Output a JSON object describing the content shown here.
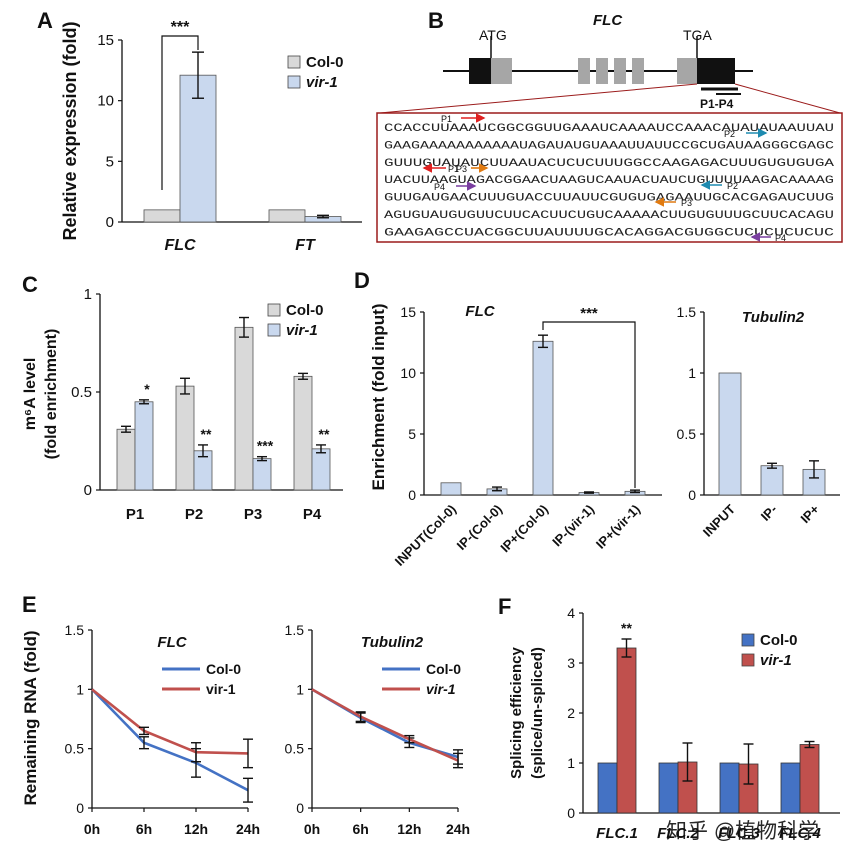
{
  "colors": {
    "col0": "#d9d9d9",
    "vir1": "#c9d8ee",
    "col0_line": "#4472c4",
    "vir1_line": "#c0504d",
    "col0_F": "#4472c4",
    "vir1_F": "#c0504d",
    "box_border": "#9b1b1b",
    "red": "#e02020",
    "teal": "#1e8bb0",
    "orange": "#e07a10",
    "purple": "#7a3ea0"
  },
  "chart_data": [
    {
      "panel": "A",
      "type": "bar",
      "ylabel": "Relative expression (fold)",
      "ylim": [
        0,
        15
      ],
      "yticks": [
        "0",
        "5",
        "10",
        "15"
      ],
      "categories": [
        "FLC",
        "FT"
      ],
      "series": [
        {
          "name": "Col-0",
          "values": [
            1,
            1
          ],
          "errors": [
            0,
            0
          ]
        },
        {
          "name": "vir-1",
          "values": [
            12.1,
            0.45
          ],
          "errors": [
            1.9,
            0.1
          ]
        }
      ],
      "annotations": [
        "***"
      ]
    },
    {
      "panel": "C",
      "type": "bar",
      "ylabel": "m6A level (fold enrichment)",
      "ylim": [
        0,
        1
      ],
      "yticks": [
        "0",
        "0.5",
        "1"
      ],
      "categories": [
        "P1",
        "P2",
        "P3",
        "P4"
      ],
      "series": [
        {
          "name": "Col-0",
          "values": [
            0.31,
            0.53,
            0.83,
            0.58
          ],
          "errors": [
            0.015,
            0.04,
            0.05,
            0.015
          ]
        },
        {
          "name": "vir-1",
          "values": [
            0.45,
            0.2,
            0.16,
            0.21
          ],
          "errors": [
            0.01,
            0.03,
            0.01,
            0.02
          ]
        }
      ],
      "annotations": [
        "*",
        "**",
        "***",
        "**"
      ]
    },
    {
      "panel": "D",
      "title": "FLC",
      "type": "bar",
      "ylabel": "Enrichment (fold input)",
      "ylim": [
        0,
        15
      ],
      "yticks": [
        "0",
        "5",
        "10",
        "15"
      ],
      "categories": [
        "INPUT(Col-0)",
        "IP-(Col-0)",
        "IP+(Col-0)",
        "IP-(vir-1)",
        "IP+(vir-1)"
      ],
      "values": [
        1,
        0.5,
        12.6,
        0.2,
        0.3
      ],
      "errors": [
        0,
        0.15,
        0.5,
        0.05,
        0.1
      ],
      "annotations": [
        "***"
      ]
    },
    {
      "panel": "D",
      "title": "Tubulin2",
      "type": "bar",
      "ylim": [
        0,
        1.5
      ],
      "yticks": [
        "0",
        "0.5",
        "1",
        "1.5"
      ],
      "categories": [
        "INPUT",
        "IP-",
        "IP+"
      ],
      "values": [
        1,
        0.24,
        0.21
      ],
      "errors": [
        0,
        0.02,
        0.07
      ]
    },
    {
      "panel": "E",
      "title": "FLC",
      "type": "line",
      "ylabel": "Remaining RNA (fold)",
      "ylim": [
        0,
        1.5
      ],
      "yticks": [
        "0",
        "0.5",
        "1",
        "1.5"
      ],
      "x": [
        "0h",
        "6h",
        "12h",
        "24h"
      ],
      "series": [
        {
          "name": "Col-0",
          "values": [
            1,
            0.55,
            0.38,
            0.15
          ],
          "errors": [
            0,
            0.05,
            0.12,
            0.1
          ]
        },
        {
          "name": "vir-1",
          "values": [
            1,
            0.65,
            0.47,
            0.46
          ],
          "errors": [
            0,
            0.03,
            0.08,
            0.12
          ]
        }
      ]
    },
    {
      "panel": "E",
      "title": "Tubulin2",
      "type": "line",
      "ylim": [
        0,
        1.5
      ],
      "yticks": [
        "0",
        "0.5",
        "1",
        "1.5"
      ],
      "x": [
        "0h",
        "6h",
        "12h",
        "24h"
      ],
      "series": [
        {
          "name": "Col-0",
          "values": [
            1,
            0.76,
            0.55,
            0.43
          ],
          "errors": [
            0,
            0.04,
            0.04,
            0.06
          ]
        },
        {
          "name": "vir-1",
          "values": [
            1,
            0.77,
            0.58,
            0.4
          ],
          "errors": [
            0,
            0.04,
            0.03,
            0.06
          ]
        }
      ]
    },
    {
      "panel": "F",
      "type": "bar",
      "ylabel": "Splicing efficiency (splice/un-spliced)",
      "ylim": [
        0,
        4
      ],
      "yticks": [
        "0",
        "1",
        "2",
        "3",
        "4"
      ],
      "categories": [
        "FLC.1",
        "FLC.2",
        "FLC.3",
        "FLC.4"
      ],
      "series": [
        {
          "name": "Col-0",
          "values": [
            1,
            1,
            1,
            1
          ],
          "errors": [
            0,
            0,
            0,
            0
          ]
        },
        {
          "name": "vir-1",
          "values": [
            3.3,
            1.02,
            0.98,
            1.37
          ],
          "errors": [
            0.18,
            0.38,
            0.4,
            0.06
          ]
        }
      ],
      "annotations": [
        "**"
      ]
    }
  ],
  "panelB": {
    "gene": "FLC",
    "atg": "ATG",
    "tga": "TGA",
    "probe_label": "P1-P4",
    "sequence_lines": [
      "CCACCUUAAAUCGGCGGUUGAAAUCAAAAUCCAAACAUAUAUAAUUAU",
      "GAAGAAAAAAAAAAAUAGAUAUGUAAAUUAUUCCGCUGAUAAGGGCGAGC",
      "GUUUGUAUAUCUUAAUACUCUCUUUGGCCAAGAGACUUUGUGUGUGA",
      "UACUUAAGUAGACGGAACUAAGUCAAUACUAUCUGUUUUAAGACAAAAG",
      "GUUGAUGAACUUUGUACCUUAUUCGUGUGAGAAUUGCACGAGAUCUUG",
      "AGUGUAUGUGUUCUUCACUUCUGUCAAAAACUUGUGUUUGCUUCACAGU",
      "GAAGAGCCUACGGCUUAUUUUGCACAGGACGUGGCUCUCUCUCUC"
    ],
    "probes": [
      "P1",
      "P2",
      "P3",
      "P4",
      "P1",
      "P2",
      "P3",
      "P4"
    ]
  },
  "legend": {
    "col0": "Col-0",
    "vir1": "vir-1"
  },
  "watermark": "知乎 @植物科学"
}
